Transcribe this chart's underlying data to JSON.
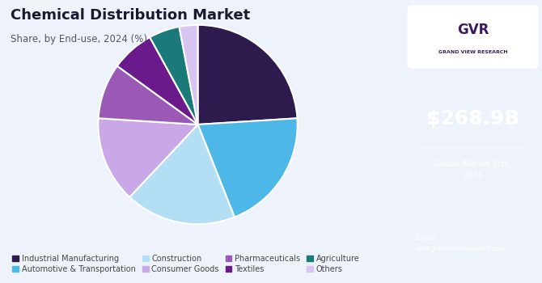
{
  "title": "Chemical Distribution Market",
  "subtitle": "Share, by End-use, 2024 (%)",
  "segments": [
    {
      "label": "Industrial Manufacturing",
      "value": 24,
      "color": "#2d1b4e"
    },
    {
      "label": "Automotive & Transportation",
      "value": 20,
      "color": "#4db8e8"
    },
    {
      "label": "Construction",
      "value": 18,
      "color": "#b3dff5"
    },
    {
      "label": "Consumer Goods",
      "value": 14,
      "color": "#c9a8e8"
    },
    {
      "label": "Pharmaceuticals",
      "value": 9,
      "color": "#9b59b6"
    },
    {
      "label": "Textiles",
      "value": 7,
      "color": "#6a1a8a"
    },
    {
      "label": "Agriculture",
      "value": 5,
      "color": "#1a7a7a"
    },
    {
      "label": "Others",
      "value": 3,
      "color": "#d8c4f0"
    }
  ],
  "sidebar_bg": "#3b1a5e",
  "sidebar_text_large": "$268.9B",
  "sidebar_text_small": "Global Market Size,\n2024",
  "source_text": "Source:\nwww.grandviewresearch.com",
  "bg_color": "#eef3fb",
  "title_color": "#1a1a2e",
  "legend_text_color": "#444444"
}
